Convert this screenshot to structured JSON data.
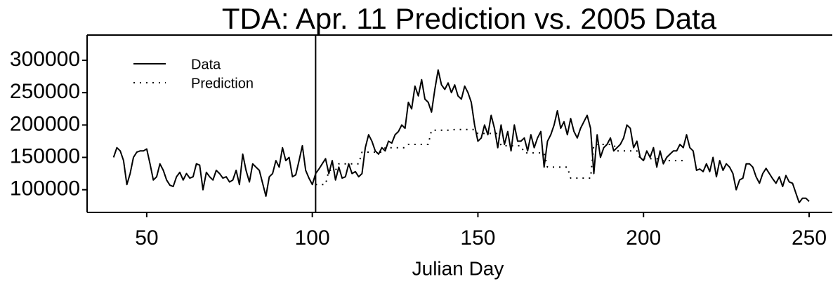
{
  "chart_data": {
    "type": "line",
    "title": "TDA: Apr. 11 Prediction vs. 2005 Data",
    "xlabel": "Julian Day",
    "xlim": [
      32,
      257
    ],
    "ylim": [
      65000,
      339000
    ],
    "xticks": [
      50,
      100,
      150,
      200,
      250
    ],
    "yticks": [
      100000,
      150000,
      200000,
      250000,
      300000
    ],
    "vline": 101,
    "legend": "upper left",
    "series": [
      {
        "name": "Data",
        "color": "#000000",
        "dash": "solid",
        "x": [
          40,
          41,
          42,
          43,
          44,
          45,
          46,
          47,
          48,
          49,
          50,
          51,
          52,
          53,
          54,
          55,
          56,
          57,
          58,
          59,
          60,
          61,
          62,
          63,
          64,
          65,
          66,
          67,
          68,
          69,
          70,
          71,
          72,
          73,
          74,
          75,
          76,
          77,
          78,
          79,
          80,
          81,
          82,
          83,
          84,
          85,
          86,
          87,
          88,
          89,
          90,
          91,
          92,
          93,
          94,
          95,
          96,
          97,
          98,
          99,
          100,
          101,
          102,
          103,
          104,
          105,
          106,
          107,
          108,
          109,
          110,
          111,
          112,
          113,
          114,
          115,
          116,
          117,
          118,
          119,
          120,
          121,
          122,
          123,
          124,
          125,
          126,
          127,
          128,
          129,
          130,
          131,
          132,
          133,
          134,
          135,
          136,
          137,
          138,
          139,
          140,
          141,
          142,
          143,
          144,
          145,
          146,
          147,
          148,
          149,
          150,
          151,
          152,
          153,
          154,
          155,
          156,
          157,
          158,
          159,
          160,
          161,
          162,
          163,
          164,
          165,
          166,
          167,
          168,
          169,
          170,
          171,
          172,
          173,
          174,
          175,
          176,
          177,
          178,
          179,
          180,
          181,
          182,
          183,
          184,
          185,
          186,
          187,
          188,
          189,
          190,
          191,
          192,
          193,
          194,
          195,
          196,
          197,
          198,
          199,
          200,
          201,
          202,
          203,
          204,
          205,
          206,
          207,
          208,
          209,
          210,
          211,
          212,
          213,
          214,
          215,
          216,
          217,
          218,
          219,
          220,
          221,
          222,
          223,
          224,
          225,
          226,
          227,
          228,
          229,
          230,
          231,
          232,
          233,
          234,
          235,
          236,
          237,
          238,
          239,
          240,
          241,
          242,
          243,
          244,
          245,
          246,
          247,
          248,
          249,
          250
        ],
        "values": [
          150000,
          165000,
          160000,
          145000,
          108000,
          125000,
          150000,
          158000,
          160000,
          160000,
          163000,
          140000,
          115000,
          120000,
          140000,
          130000,
          115000,
          107000,
          105000,
          120000,
          127000,
          115000,
          125000,
          118000,
          120000,
          140000,
          138000,
          100000,
          127000,
          120000,
          115000,
          130000,
          125000,
          118000,
          120000,
          112000,
          115000,
          130000,
          108000,
          155000,
          130000,
          112000,
          140000,
          135000,
          130000,
          110000,
          90000,
          120000,
          125000,
          145000,
          135000,
          165000,
          145000,
          150000,
          120000,
          123000,
          145000,
          168000,
          130000,
          118000,
          108000,
          125000,
          132000,
          140000,
          148000,
          125000,
          145000,
          115000,
          135000,
          118000,
          120000,
          140000,
          125000,
          128000,
          120000,
          125000,
          165000,
          185000,
          175000,
          160000,
          155000,
          165000,
          160000,
          175000,
          172000,
          185000,
          190000,
          200000,
          195000,
          235000,
          225000,
          260000,
          245000,
          270000,
          240000,
          235000,
          220000,
          255000,
          285000,
          262000,
          255000,
          265000,
          250000,
          262000,
          245000,
          240000,
          260000,
          250000,
          235000,
          200000,
          175000,
          180000,
          200000,
          185000,
          215000,
          195000,
          165000,
          200000,
          170000,
          190000,
          160000,
          200000,
          175000,
          175000,
          180000,
          160000,
          185000,
          165000,
          180000,
          190000,
          135000,
          175000,
          185000,
          200000,
          222000,
          195000,
          205000,
          185000,
          210000,
          190000,
          180000,
          195000,
          205000,
          215000,
          195000,
          125000,
          185000,
          150000,
          165000,
          170000,
          180000,
          160000,
          165000,
          170000,
          180000,
          200000,
          195000,
          165000,
          175000,
          150000,
          145000,
          160000,
          150000,
          165000,
          135000,
          160000,
          140000,
          150000,
          155000,
          160000,
          160000,
          170000,
          165000,
          185000,
          165000,
          160000,
          130000,
          132000,
          128000,
          140000,
          128000,
          150000,
          120000,
          145000,
          130000,
          140000,
          135000,
          125000,
          100000,
          115000,
          118000,
          140000,
          140000,
          135000,
          120000,
          110000,
          125000,
          133000,
          125000,
          117000,
          110000,
          120000,
          105000,
          122000,
          112000,
          110000,
          95000,
          80000,
          87000,
          87000,
          82000
        ]
      },
      {
        "name": "Prediction",
        "color": "#000000",
        "dash": "dotted",
        "x": [
          101,
          102,
          103,
          104,
          105,
          106,
          107,
          108,
          109,
          110,
          111,
          112,
          113,
          114,
          115,
          116,
          117,
          118,
          119,
          120,
          121,
          122,
          123,
          124,
          125,
          126,
          127,
          128,
          129,
          130,
          131,
          132,
          133,
          134,
          135,
          136,
          137,
          138,
          139,
          140,
          141,
          142,
          143,
          144,
          145,
          146,
          147,
          148,
          149,
          150,
          151,
          152,
          153,
          154,
          155,
          156,
          157,
          158,
          159,
          160,
          161,
          162,
          163,
          164,
          165,
          166,
          167,
          168,
          169,
          170,
          171,
          172,
          173,
          174,
          175,
          176,
          177,
          178,
          179,
          180,
          181,
          182,
          183,
          184,
          185,
          186,
          187,
          188,
          189,
          190,
          191,
          192,
          193,
          194,
          195,
          196,
          197,
          198,
          199,
          200,
          201,
          202,
          203,
          204,
          205,
          206,
          207,
          208,
          209,
          210,
          211,
          212
        ],
        "values": [
          108000,
          108000,
          108000,
          108000,
          130000,
          130000,
          130000,
          140000,
          140000,
          140000,
          140000,
          140000,
          140000,
          140000,
          158000,
          158000,
          158000,
          158000,
          158000,
          158000,
          158000,
          165000,
          165000,
          165000,
          165000,
          165000,
          165000,
          165000,
          170000,
          170000,
          170000,
          170000,
          170000,
          170000,
          170000,
          192000,
          192000,
          192000,
          192000,
          192000,
          192000,
          192000,
          193000,
          193000,
          193000,
          193000,
          193000,
          193000,
          193000,
          187000,
          187000,
          187000,
          187000,
          187000,
          187000,
          187000,
          168000,
          168000,
          168000,
          168000,
          168000,
          168000,
          168000,
          157000,
          157000,
          157000,
          157000,
          157000,
          157000,
          157000,
          135000,
          135000,
          135000,
          135000,
          135000,
          135000,
          135000,
          118000,
          118000,
          118000,
          118000,
          118000,
          118000,
          118000,
          170000,
          170000,
          170000,
          170000,
          170000,
          170000,
          170000,
          160000,
          160000,
          160000,
          160000,
          160000,
          160000,
          160000,
          148000,
          148000,
          148000,
          148000,
          148000,
          148000,
          148000,
          145000,
          145000,
          145000,
          145000,
          145000,
          145000,
          145000
        ]
      }
    ]
  }
}
